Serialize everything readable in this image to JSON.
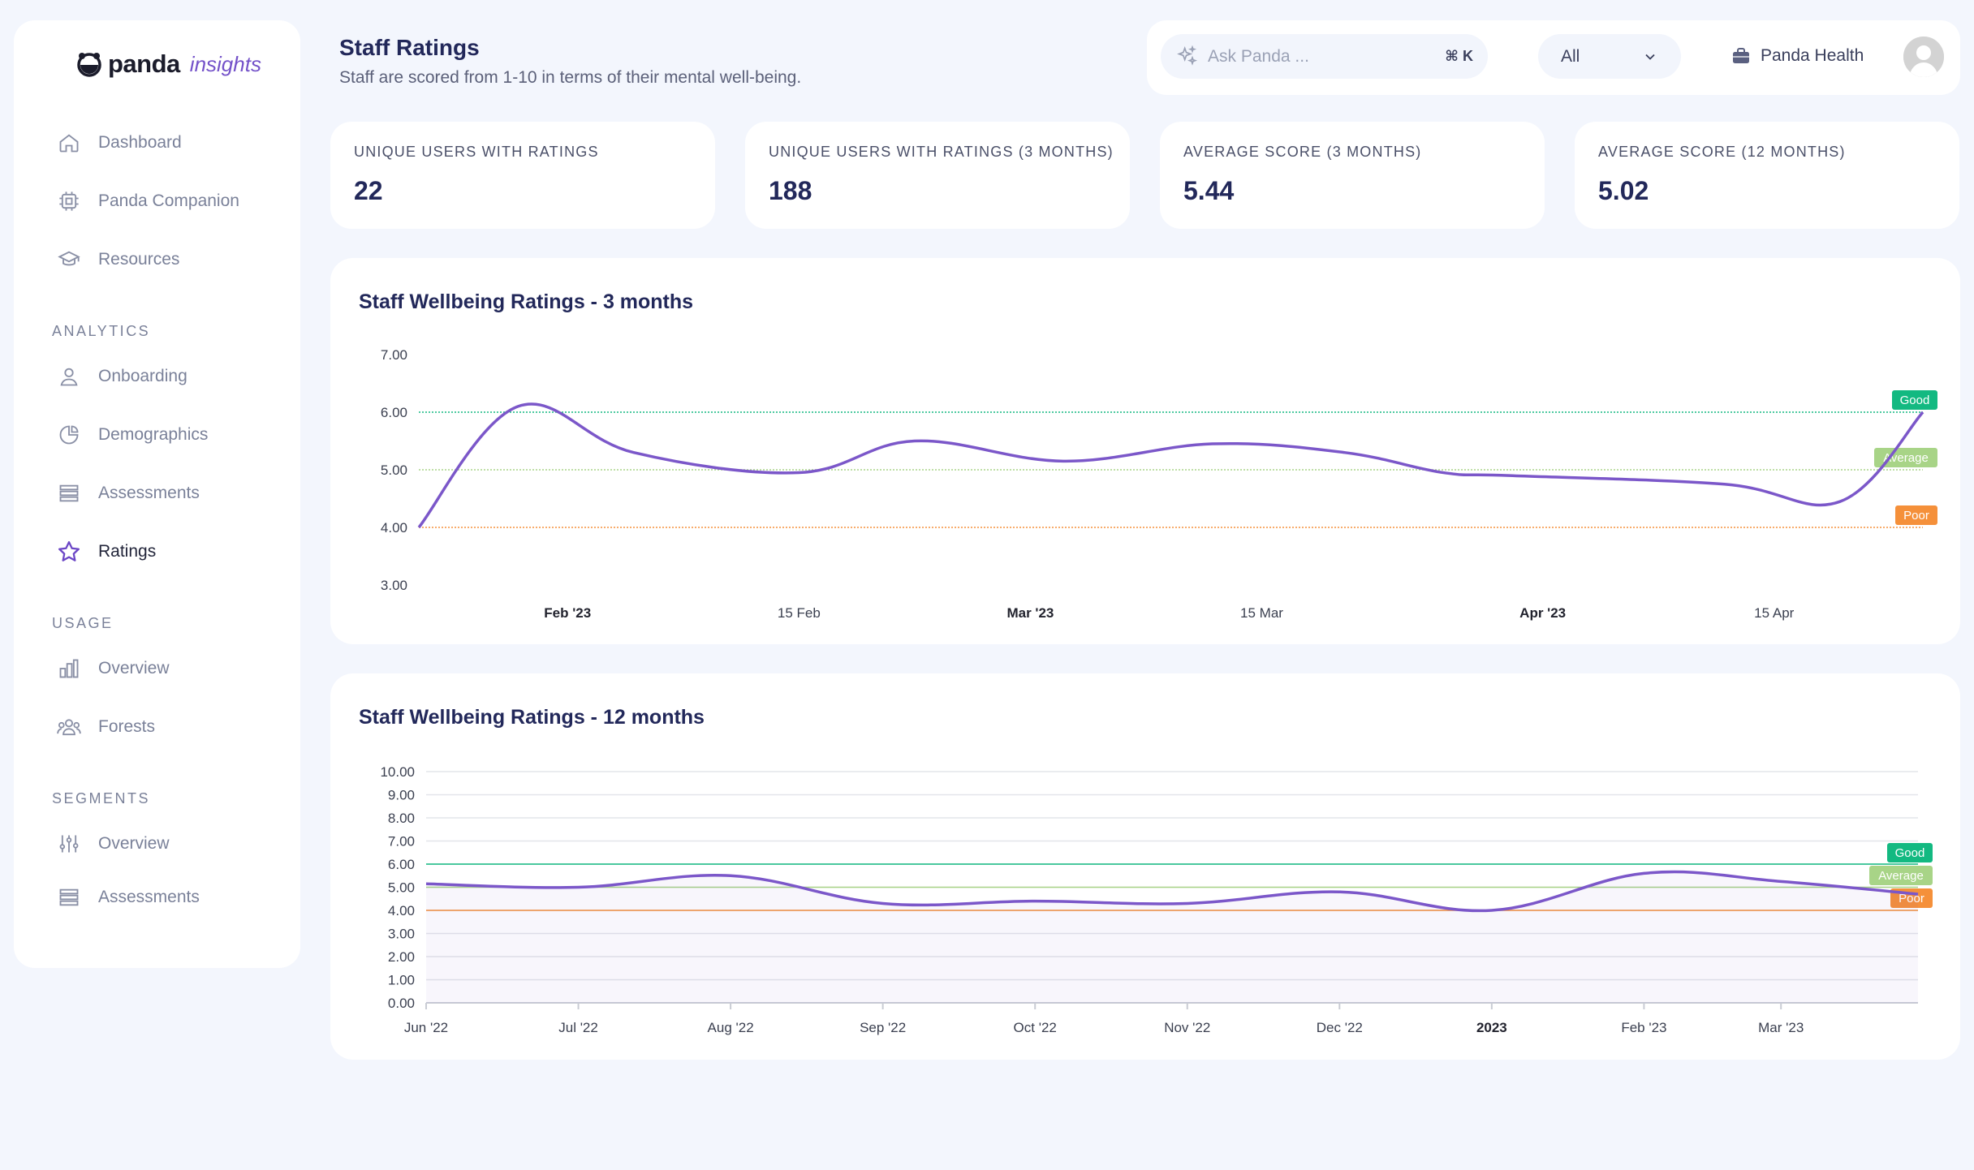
{
  "brand": {
    "name": "panda",
    "suffix": "insights"
  },
  "sidebar": {
    "main": [
      {
        "label": "Dashboard",
        "icon": "home-icon"
      },
      {
        "label": "Panda Companion",
        "icon": "chip-icon"
      },
      {
        "label": "Resources",
        "icon": "graduation-cap-icon"
      }
    ],
    "sections": [
      {
        "title": "ANALYTICS",
        "items": [
          {
            "label": "Onboarding",
            "icon": "user-icon"
          },
          {
            "label": "Demographics",
            "icon": "pie-chart-icon"
          },
          {
            "label": "Assessments",
            "icon": "stack-icon"
          },
          {
            "label": "Ratings",
            "icon": "star-icon",
            "active": true
          }
        ]
      },
      {
        "title": "USAGE",
        "items": [
          {
            "label": "Overview",
            "icon": "bar-chart-icon"
          },
          {
            "label": "Forests",
            "icon": "users-icon"
          }
        ]
      },
      {
        "title": "SEGMENTS",
        "items": [
          {
            "label": "Overview",
            "icon": "sliders-icon"
          },
          {
            "label": "Assessments",
            "icon": "stack-icon"
          }
        ]
      }
    ]
  },
  "header": {
    "title": "Staff Ratings",
    "subtitle": "Staff are scored from 1-10 in terms of their mental well-being."
  },
  "topbar": {
    "search_placeholder": "Ask Panda ...",
    "shortcut": "⌘ K",
    "filter_value": "All",
    "org_name": "Panda Health"
  },
  "stats": [
    {
      "label": "UNIQUE USERS WITH RATINGS",
      "value": "22"
    },
    {
      "label": "UNIQUE USERS WITH RATINGS (3 MONTHS)",
      "value": "188"
    },
    {
      "label": "AVERAGE SCORE (3 MONTHS)",
      "value": "5.44"
    },
    {
      "label": "AVERAGE SCORE (12 MONTHS)",
      "value": "5.02"
    }
  ],
  "colors": {
    "line": "#7b57c9",
    "good": "#13b981",
    "average": "#a8d487",
    "poor": "#f5903a"
  },
  "chart_data": [
    {
      "type": "line",
      "title": "Staff Wellbeing Ratings - 3 months",
      "ylim": [
        3,
        7
      ],
      "yticks": [
        "7.00",
        "6.00",
        "5.00",
        "4.00",
        "3.00"
      ],
      "xticks": [
        {
          "label": "Feb '23",
          "bold": true,
          "x": 10
        },
        {
          "label": "15 Feb",
          "bold": false,
          "x": 24
        },
        {
          "label": "Mar '23",
          "bold": true,
          "x": 38
        },
        {
          "label": "15 Mar",
          "bold": false,
          "x": 52
        },
        {
          "label": "Apr '23",
          "bold": true,
          "x": 69
        },
        {
          "label": "15 Apr",
          "bold": false,
          "x": 83
        }
      ],
      "xlim": [
        1,
        92
      ],
      "thresholds": [
        {
          "name": "Good",
          "value": 6.0
        },
        {
          "name": "Average",
          "value": 5.0
        },
        {
          "name": "Poor",
          "value": 4.0
        }
      ],
      "series": [
        {
          "x": [
            1,
            7,
            14,
            24,
            31,
            40,
            49,
            57,
            63,
            67,
            80,
            87,
            92
          ],
          "values": [
            4.0,
            6.1,
            5.3,
            4.95,
            5.5,
            5.15,
            5.45,
            5.3,
            4.95,
            4.9,
            4.75,
            4.45,
            6.0
          ]
        }
      ]
    },
    {
      "type": "area",
      "title": "Staff Wellbeing Ratings - 12 months",
      "ylim": [
        0,
        10
      ],
      "yticks": [
        "10.00",
        "9.00",
        "8.00",
        "7.00",
        "6.00",
        "5.00",
        "4.00",
        "3.00",
        "2.00",
        "1.00",
        "0.00"
      ],
      "xticks": [
        {
          "label": "Jun '22",
          "bold": false,
          "x": 0
        },
        {
          "label": "Jul '22",
          "bold": false,
          "x": 1
        },
        {
          "label": "Aug '22",
          "bold": false,
          "x": 2
        },
        {
          "label": "Sep '22",
          "bold": false,
          "x": 3
        },
        {
          "label": "Oct '22",
          "bold": false,
          "x": 4
        },
        {
          "label": "Nov '22",
          "bold": false,
          "x": 5
        },
        {
          "label": "Dec '22",
          "bold": false,
          "x": 6
        },
        {
          "label": "2023",
          "bold": true,
          "x": 7
        },
        {
          "label": "Feb '23",
          "bold": false,
          "x": 8
        },
        {
          "label": "Mar '23",
          "bold": false,
          "x": 8.9
        }
      ],
      "xlim": [
        0,
        9.8
      ],
      "thresholds": [
        {
          "name": "Good",
          "value": 6.0
        },
        {
          "name": "Average",
          "value": 5.0
        },
        {
          "name": "Poor",
          "value": 4.0
        }
      ],
      "series": [
        {
          "x": [
            0,
            1,
            2,
            3,
            4,
            5,
            6,
            7,
            8,
            8.9,
            9.8
          ],
          "values": [
            5.15,
            5.0,
            5.5,
            4.3,
            4.4,
            4.3,
            4.8,
            4.0,
            5.6,
            5.25,
            4.7
          ]
        }
      ]
    }
  ]
}
